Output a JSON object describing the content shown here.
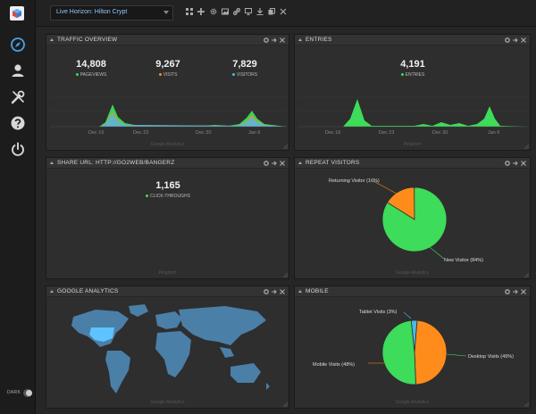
{
  "topbar": {
    "dashboard_select": "Live Horizon: Hilton Crypt",
    "toolbar_icons": [
      "grid-icon",
      "plus-icon",
      "gear-icon",
      "image-icon",
      "link-icon",
      "monitor-icon",
      "download-icon",
      "copy-icon",
      "close-icon"
    ]
  },
  "sidebar": {
    "icons": [
      "compass-icon",
      "user-icon",
      "tools-icon",
      "help-icon",
      "power-icon"
    ],
    "dark_label": "DARK"
  },
  "widgets": {
    "traffic": {
      "title": "TRAFFIC OVERVIEW",
      "source": "Google Analytics",
      "stats": [
        {
          "value": "14,808",
          "label": "PAGEVIEWS",
          "color": "#3ddc5a"
        },
        {
          "value": "9,267",
          "label": "VISITS",
          "color": "#ff8c1a"
        },
        {
          "value": "7,829",
          "label": "VISITORS",
          "color": "#4cb8e8"
        }
      ],
      "x_ticks": [
        "Dec 16",
        "Dec 23",
        "Dec 30",
        "Jan 6"
      ]
    },
    "entries": {
      "title": "ENTRIES",
      "source": "Pingdom",
      "stat_value": "4,191",
      "stat_label": "ENTRIES",
      "x_ticks": [
        "Dec 16",
        "Dec 23",
        "Dec 30",
        "Jan 6"
      ]
    },
    "share": {
      "title": "SHARE URL: HTTP://GO2WEB/BANGERZ",
      "source": "Pingdom",
      "stat_value": "1,165",
      "stat_label": "CLICK-THROUGHS"
    },
    "repeat": {
      "title": "REPEAT VISITORS",
      "source": "Google Analytics",
      "labels": [
        "Returning Visitor (16%)",
        "New Visitor (84%)"
      ]
    },
    "geo": {
      "title": "GOOGLE ANALYTICS",
      "source": "Google Analytics"
    },
    "mobile": {
      "title": "MOBILE",
      "source": "Google Analytics",
      "labels": [
        "Tablet Visits (3%)",
        "Mobile Visits (48%)",
        "Desktop Visits (49%)"
      ]
    }
  },
  "chart_data": [
    {
      "type": "area",
      "title": "TRAFFIC OVERVIEW",
      "x": [
        "Dec 16",
        "Dec 23",
        "Dec 30",
        "Jan 6"
      ],
      "series": [
        {
          "name": "PAGEVIEWS",
          "color": "#3ddc5a"
        },
        {
          "name": "VISITS",
          "color": "#ff8c1a"
        },
        {
          "name": "VISITORS",
          "color": "#4cb8e8"
        }
      ]
    },
    {
      "type": "area",
      "title": "ENTRIES",
      "x": [
        "Dec 16",
        "Dec 23",
        "Dec 30",
        "Jan 6"
      ],
      "series": [
        {
          "name": "ENTRIES",
          "color": "#3ddc5a"
        }
      ]
    },
    {
      "type": "pie",
      "title": "REPEAT VISITORS",
      "categories": [
        "Returning Visitor",
        "New Visitor"
      ],
      "values": [
        16,
        84
      ],
      "colors": [
        "#ff8c1a",
        "#3ddc5a"
      ]
    },
    {
      "type": "pie",
      "title": "MOBILE",
      "categories": [
        "Tablet Visits",
        "Mobile Visits",
        "Desktop Visits"
      ],
      "values": [
        3,
        48,
        49
      ],
      "colors": [
        "#4cb8e8",
        "#ff8c1a",
        "#3ddc5a"
      ]
    }
  ]
}
